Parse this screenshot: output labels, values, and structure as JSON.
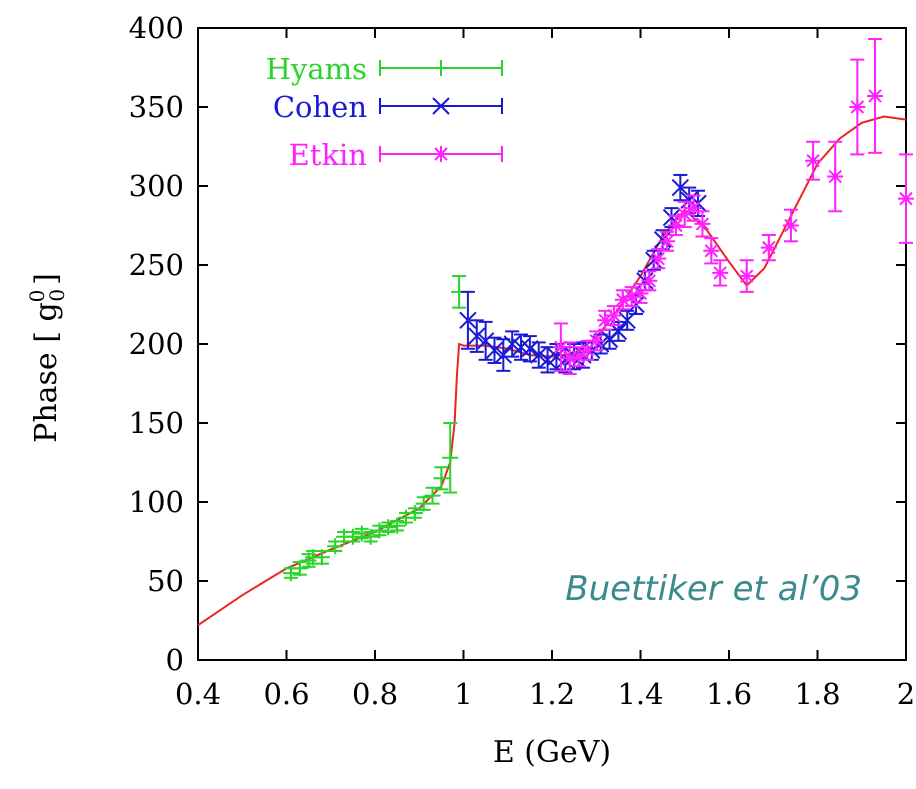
{
  "colors": {
    "hyams": "#2bd42b",
    "cohen": "#1a1ad6",
    "etkin": "#ff22ff",
    "fit": "#ee2222",
    "annotation": "#3a8a8e"
  },
  "chart_data": {
    "type": "scatter",
    "title": "",
    "xlabel": "E (GeV)",
    "ylabel": "Phase [ g00 ]",
    "ylabel_parts": {
      "base": "Phase [ g",
      "sup": "0",
      "sub": "0",
      "close": "]"
    },
    "xlim": [
      0.4,
      2.0
    ],
    "ylim": [
      0,
      400
    ],
    "xticks": [
      0.4,
      0.6,
      0.8,
      1.0,
      1.2,
      1.4,
      1.6,
      1.8,
      2.0
    ],
    "xtick_labels": [
      "0.4",
      "0.6",
      "0.8",
      "1",
      "1.2",
      "1.4",
      "1.6",
      "1.8",
      "2"
    ],
    "yticks": [
      0,
      50,
      100,
      150,
      200,
      250,
      300,
      350,
      400
    ],
    "ytick_labels": [
      "0",
      "50",
      "100",
      "150",
      "200",
      "250",
      "300",
      "350",
      "400"
    ],
    "grid": false,
    "legend_position": "top-left",
    "annotation": "Buettiker et al’03",
    "series": [
      {
        "name": "Hyams",
        "marker": "plus",
        "points": [
          [
            0.61,
            55,
            3
          ],
          [
            0.63,
            58,
            4
          ],
          [
            0.65,
            63,
            4
          ],
          [
            0.66,
            65,
            4
          ],
          [
            0.68,
            65,
            4
          ],
          [
            0.71,
            72,
            3
          ],
          [
            0.73,
            78,
            3
          ],
          [
            0.75,
            78,
            3
          ],
          [
            0.77,
            80,
            3
          ],
          [
            0.79,
            78,
            3
          ],
          [
            0.81,
            82,
            3
          ],
          [
            0.83,
            84,
            3
          ],
          [
            0.85,
            85,
            3
          ],
          [
            0.87,
            90,
            3
          ],
          [
            0.89,
            93,
            3
          ],
          [
            0.91,
            99,
            4
          ],
          [
            0.93,
            104,
            5
          ],
          [
            0.95,
            115,
            7
          ],
          [
            0.97,
            128,
            22
          ],
          [
            0.99,
            233,
            10
          ]
        ]
      },
      {
        "name": "Cohen",
        "marker": "cross",
        "points": [
          [
            1.01,
            215,
            18
          ],
          [
            1.03,
            205,
            10
          ],
          [
            1.05,
            202,
            12
          ],
          [
            1.07,
            196,
            8
          ],
          [
            1.09,
            193,
            10
          ],
          [
            1.11,
            200,
            8
          ],
          [
            1.13,
            198,
            8
          ],
          [
            1.15,
            197,
            8
          ],
          [
            1.17,
            193,
            8
          ],
          [
            1.19,
            190,
            8
          ],
          [
            1.21,
            192,
            8
          ],
          [
            1.23,
            190,
            8
          ],
          [
            1.25,
            192,
            8
          ],
          [
            1.27,
            193,
            8
          ],
          [
            1.29,
            196,
            6
          ],
          [
            1.31,
            200,
            6
          ],
          [
            1.33,
            203,
            6
          ],
          [
            1.35,
            208,
            6
          ],
          [
            1.37,
            215,
            6
          ],
          [
            1.39,
            225,
            6
          ],
          [
            1.41,
            240,
            6
          ],
          [
            1.43,
            253,
            6
          ],
          [
            1.45,
            266,
            6
          ],
          [
            1.47,
            280,
            6
          ],
          [
            1.49,
            299,
            8
          ],
          [
            1.51,
            291,
            8
          ],
          [
            1.53,
            289,
            8
          ]
        ]
      },
      {
        "name": "Etkin",
        "marker": "star",
        "points": [
          [
            1.22,
            198,
            15
          ],
          [
            1.24,
            191,
            10
          ],
          [
            1.26,
            192,
            6
          ],
          [
            1.28,
            196,
            6
          ],
          [
            1.3,
            202,
            6
          ],
          [
            1.32,
            215,
            6
          ],
          [
            1.34,
            218,
            6
          ],
          [
            1.36,
            228,
            6
          ],
          [
            1.38,
            230,
            6
          ],
          [
            1.4,
            232,
            6
          ],
          [
            1.42,
            240,
            6
          ],
          [
            1.44,
            254,
            6
          ],
          [
            1.46,
            265,
            6
          ],
          [
            1.48,
            275,
            6
          ],
          [
            1.5,
            282,
            8
          ],
          [
            1.52,
            286,
            8
          ],
          [
            1.54,
            276,
            8
          ],
          [
            1.56,
            259,
            8
          ],
          [
            1.58,
            245,
            8
          ],
          [
            1.64,
            243,
            10
          ],
          [
            1.69,
            261,
            8
          ],
          [
            1.74,
            275,
            10
          ],
          [
            1.79,
            316,
            12
          ],
          [
            1.84,
            306,
            22
          ],
          [
            1.89,
            350,
            30
          ],
          [
            1.93,
            357,
            36
          ],
          [
            2.0,
            292,
            28
          ]
        ]
      }
    ],
    "fit_curve": [
      [
        0.4,
        22
      ],
      [
        0.5,
        41
      ],
      [
        0.6,
        58
      ],
      [
        0.7,
        70
      ],
      [
        0.8,
        81
      ],
      [
        0.9,
        96
      ],
      [
        0.95,
        110
      ],
      [
        0.97,
        125
      ],
      [
        0.98,
        150
      ],
      [
        0.985,
        180
      ],
      [
        0.99,
        200
      ],
      [
        1.0,
        199
      ],
      [
        1.05,
        199
      ],
      [
        1.1,
        197
      ],
      [
        1.15,
        193
      ],
      [
        1.2,
        192
      ],
      [
        1.25,
        194
      ],
      [
        1.3,
        204
      ],
      [
        1.35,
        222
      ],
      [
        1.4,
        243
      ],
      [
        1.45,
        268
      ],
      [
        1.5,
        285
      ],
      [
        1.55,
        272
      ],
      [
        1.6,
        252
      ],
      [
        1.64,
        237
      ],
      [
        1.68,
        248
      ],
      [
        1.72,
        270
      ],
      [
        1.76,
        292
      ],
      [
        1.8,
        314
      ],
      [
        1.85,
        330
      ],
      [
        1.9,
        340
      ],
      [
        1.95,
        344
      ],
      [
        2.0,
        342
      ]
    ]
  }
}
